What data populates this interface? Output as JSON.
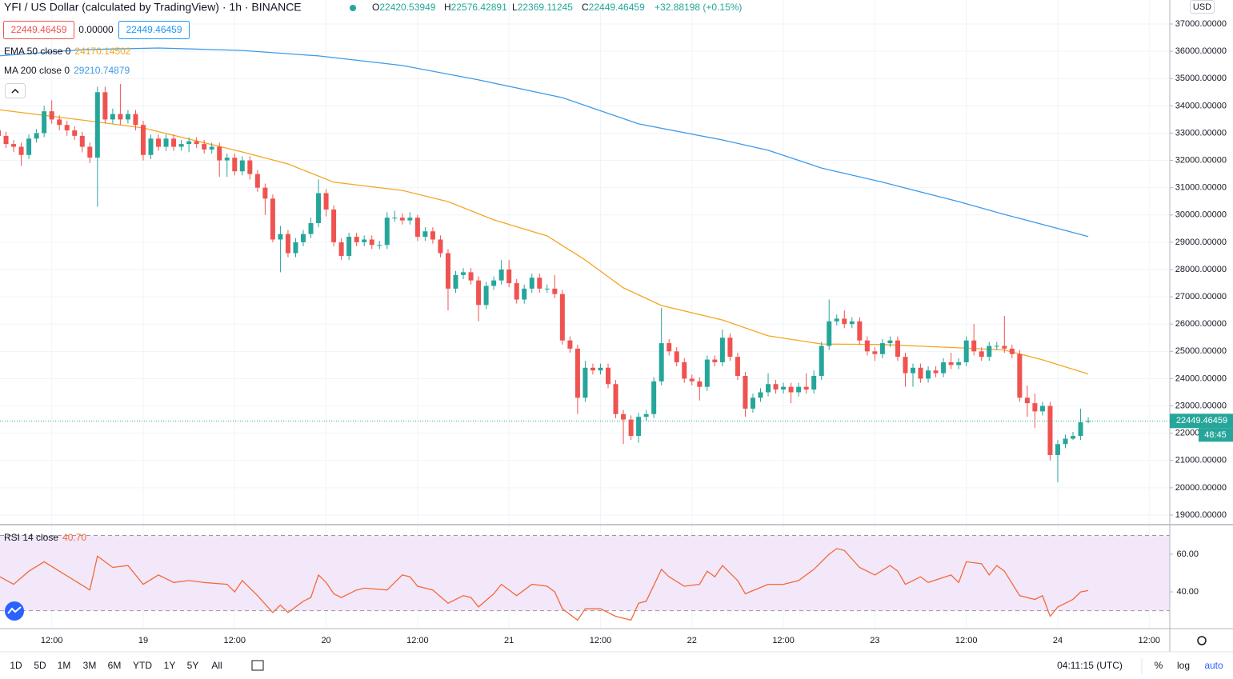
{
  "header": {
    "title": "YFI / US Dollar (calculated by TradingView) · 1h · BINANCE",
    "ohlc": [
      {
        "key": "O",
        "value": "22420.53949"
      },
      {
        "key": "H",
        "value": "22576.42891"
      },
      {
        "key": "L",
        "value": "22369.11245"
      },
      {
        "key": "C",
        "value": "22449.46459"
      }
    ],
    "change": "+32.88198 (+0.15%)",
    "boxes": [
      "22449.46459",
      "0.00000",
      "22449.46459"
    ],
    "currency": "USD"
  },
  "chart_data": [
    {
      "type": "candlestick",
      "up_color": "#26a69a",
      "down_color": "#ef5350",
      "grid": true,
      "xlim": [
        5.21,
        158.7
      ],
      "ylim": [
        18677,
        37880
      ],
      "yticks": [
        {
          "value": 37000,
          "label": "37000.00000"
        },
        {
          "value": 36000,
          "label": "36000.00000"
        },
        {
          "value": 35000,
          "label": "35000.00000"
        },
        {
          "value": 34000,
          "label": "34000.00000"
        },
        {
          "value": 33000,
          "label": "33000.00000"
        },
        {
          "value": 32000,
          "label": "32000.00000"
        },
        {
          "value": 31000,
          "label": "31000.00000"
        },
        {
          "value": 30000,
          "label": "30000.00000"
        },
        {
          "value": 29000,
          "label": "29000.00000"
        },
        {
          "value": 28000,
          "label": "28000.00000"
        },
        {
          "value": 27000,
          "label": "27000.00000"
        },
        {
          "value": 26000,
          "label": "26000.00000"
        },
        {
          "value": 25000,
          "label": "25000.00000"
        },
        {
          "value": 24000,
          "label": "24000.00000"
        },
        {
          "value": 23000,
          "label": "23000.00000"
        },
        {
          "value": 22000,
          "label": "22000.00000"
        },
        {
          "value": 21000,
          "label": "21000.00000"
        },
        {
          "value": 20000,
          "label": "20000.00000"
        },
        {
          "value": 19000,
          "label": "19000.00000"
        }
      ],
      "x": [
        5,
        6,
        7,
        8,
        9,
        10,
        11,
        12,
        13,
        14,
        15,
        16,
        17,
        18,
        19,
        20,
        21,
        22,
        23,
        24,
        25,
        26,
        27,
        28,
        29,
        30,
        31,
        32,
        33,
        34,
        35,
        36,
        37,
        38,
        39,
        40,
        41,
        42,
        43,
        44,
        45,
        46,
        47,
        48,
        49,
        50,
        51,
        52,
        53,
        54,
        55,
        56,
        57,
        58,
        59,
        60,
        61,
        62,
        63,
        64,
        65,
        66,
        67,
        68,
        69,
        70,
        71,
        72,
        73,
        74,
        75,
        76,
        77,
        78,
        79,
        80,
        81,
        82,
        83,
        84,
        85,
        86,
        87,
        88,
        89,
        90,
        91,
        92,
        93,
        94,
        95,
        96,
        97,
        98,
        99,
        100,
        101,
        102,
        103,
        104,
        105,
        106,
        107,
        108,
        109,
        110,
        111,
        112,
        113,
        114,
        115,
        116,
        117,
        118,
        119,
        120,
        121,
        122,
        123,
        124,
        125,
        126,
        127,
        128,
        129,
        130,
        131,
        132,
        133,
        134,
        135,
        136,
        137,
        138,
        139,
        140,
        141,
        142,
        143,
        144,
        145,
        146,
        147,
        148
      ],
      "open": [
        33100,
        32900,
        32600,
        32500,
        32200,
        32800,
        33000,
        33800,
        33500,
        33300,
        33100,
        32900,
        32500,
        32100,
        34500,
        33500,
        33700,
        33500,
        33700,
        33300,
        32200,
        32800,
        32500,
        32800,
        32500,
        32600,
        32700,
        32600,
        32400,
        32500,
        32000,
        32100,
        31600,
        32000,
        31500,
        31000,
        30600,
        29100,
        29300,
        28600,
        29000,
        29300,
        29700,
        30800,
        30200,
        29000,
        28500,
        29200,
        29000,
        29100,
        28900,
        28900,
        29900,
        29900,
        29800,
        29900,
        29200,
        29400,
        29100,
        28600,
        27300,
        27800,
        27900,
        27600,
        26700,
        27400,
        27600,
        28000,
        27500,
        26900,
        27300,
        27700,
        27300,
        27300,
        27100,
        25400,
        25100,
        23300,
        24400,
        24300,
        24400,
        23800,
        22700,
        22500,
        21900,
        22600,
        22700,
        23900,
        25300,
        25000,
        24600,
        24000,
        23900,
        23700,
        24700,
        24600,
        25500,
        24800,
        24100,
        22900,
        23300,
        23500,
        23800,
        23600,
        23700,
        23500,
        23700,
        23600,
        24100,
        25200,
        26100,
        26200,
        26000,
        26100,
        25400,
        25000,
        24900,
        25300,
        25400,
        24800,
        24200,
        24400,
        24000,
        24300,
        24200,
        24600,
        24500,
        24600,
        25400,
        25000,
        24800,
        25200,
        25200,
        25100,
        24900,
        23300,
        23100,
        22800,
        23000,
        21200,
        21600,
        21800,
        21900,
        22420.53949
      ],
      "high": [
        33250,
        33050,
        32750,
        32650,
        32950,
        33150,
        34000,
        34200,
        33650,
        33450,
        33250,
        33050,
        32650,
        34700,
        34700,
        33900,
        34800,
        33850,
        33850,
        33450,
        32950,
        32950,
        32950,
        32950,
        32750,
        32850,
        32850,
        32750,
        32650,
        32650,
        32250,
        32250,
        32150,
        32150,
        31650,
        31150,
        30750,
        29600,
        29450,
        29150,
        29450,
        29900,
        31300,
        30950,
        30350,
        29150,
        29350,
        29350,
        29250,
        29250,
        29050,
        30100,
        30150,
        30050,
        30100,
        30000,
        29550,
        29550,
        29250,
        28750,
        27950,
        28050,
        28050,
        27750,
        27550,
        27750,
        28350,
        28350,
        27650,
        27450,
        27850,
        27850,
        27450,
        27800,
        27250,
        25550,
        25250,
        24650,
        24550,
        24550,
        24550,
        23950,
        22850,
        22650,
        22750,
        22850,
        24050,
        26600,
        25450,
        25150,
        24750,
        24150,
        24050,
        24850,
        24850,
        25800,
        25650,
        24950,
        24250,
        23450,
        23650,
        24200,
        23950,
        23850,
        23850,
        23850,
        24200,
        24300,
        25350,
        26900,
        26350,
        26500,
        26250,
        26250,
        25550,
        25150,
        25450,
        25550,
        25550,
        24950,
        24550,
        24550,
        24450,
        24450,
        24750,
        24950,
        24750,
        25550,
        26000,
        25150,
        25350,
        25350,
        26300,
        25250,
        25050,
        23750,
        23450,
        23150,
        23150,
        21750,
        21950,
        22050,
        22900,
        22576.42891
      ],
      "low": [
        32750,
        32450,
        32300,
        31800,
        32050,
        32650,
        32850,
        33350,
        33100,
        32900,
        32750,
        32300,
        31900,
        30300,
        33350,
        33350,
        33300,
        33350,
        33100,
        32000,
        32050,
        32350,
        32350,
        32350,
        32350,
        32300,
        32450,
        32250,
        32250,
        31400,
        31400,
        31450,
        31450,
        31300,
        30850,
        30000,
        29000,
        27900,
        28450,
        28450,
        28850,
        29150,
        29550,
        29950,
        28850,
        28350,
        28350,
        28850,
        28850,
        28750,
        28750,
        28750,
        29750,
        29650,
        29650,
        29050,
        29050,
        28950,
        28450,
        26500,
        27150,
        27650,
        27450,
        26100,
        26550,
        27250,
        27450,
        27350,
        26750,
        26750,
        27150,
        27150,
        27150,
        26950,
        25250,
        24950,
        22700,
        23150,
        24150,
        24150,
        23650,
        22550,
        21600,
        21750,
        21650,
        22450,
        22550,
        23750,
        24850,
        24450,
        23850,
        23750,
        23200,
        23550,
        24450,
        24450,
        24650,
        23950,
        22600,
        22750,
        23150,
        23350,
        23450,
        23450,
        23100,
        23350,
        23450,
        23450,
        23950,
        25050,
        25950,
        25850,
        25850,
        25250,
        24850,
        24650,
        24750,
        25150,
        24650,
        23700,
        23700,
        23850,
        23850,
        24050,
        24050,
        24350,
        24350,
        24450,
        24850,
        24650,
        24650,
        25050,
        24950,
        24750,
        23150,
        22600,
        22200,
        22650,
        21000,
        20200,
        21450,
        21750,
        21750,
        22369.11245
      ],
      "close": [
        32900,
        32600,
        32500,
        32200,
        32800,
        33000,
        33800,
        33500,
        33300,
        33100,
        32900,
        32500,
        32100,
        34500,
        33500,
        33700,
        33500,
        33700,
        33300,
        32200,
        32800,
        32500,
        32800,
        32500,
        32600,
        32700,
        32600,
        32400,
        32500,
        32000,
        32100,
        31600,
        32000,
        31500,
        31000,
        30600,
        29100,
        29300,
        28600,
        29000,
        29300,
        29700,
        30800,
        30200,
        29000,
        28500,
        29200,
        29000,
        29100,
        28900,
        28900,
        29900,
        29900,
        29800,
        29900,
        29200,
        29400,
        29100,
        28600,
        27300,
        27800,
        27900,
        27600,
        26700,
        27400,
        27600,
        28000,
        27500,
        26900,
        27300,
        27700,
        27300,
        27300,
        27100,
        25400,
        25100,
        23300,
        24400,
        24300,
        24400,
        23800,
        22700,
        22500,
        21900,
        22600,
        22700,
        23900,
        25300,
        25000,
        24600,
        24000,
        23900,
        23700,
        24700,
        24600,
        25500,
        24800,
        24100,
        22900,
        23300,
        23500,
        23800,
        23600,
        23700,
        23500,
        23700,
        23600,
        24100,
        25200,
        26100,
        26200,
        26000,
        26100,
        25400,
        25000,
        24900,
        25300,
        25400,
        24800,
        24200,
        24400,
        24000,
        24300,
        24200,
        24600,
        24500,
        24600,
        25400,
        25000,
        24800,
        25200,
        25200,
        25100,
        24900,
        23300,
        23100,
        22800,
        23000,
        21200,
        21600,
        21800,
        21900,
        22400,
        22449.46459
      ],
      "last_price_label": "22449.46459",
      "countdown": "48:45",
      "series": [
        {
          "name": "EMA 50 close 0",
          "legend_value": "24170.14502",
          "color": "#f5a623",
          "x": [
            5,
            16,
            24,
            37,
            43,
            49,
            58,
            64,
            70,
            77,
            82,
            87,
            92,
            100,
            106,
            113,
            121,
            131,
            137,
            142,
            148
          ],
          "values": [
            33860,
            33480,
            33190,
            32310,
            31870,
            31200,
            30900,
            30490,
            29820,
            29230,
            28350,
            27330,
            26680,
            26150,
            25570,
            25270,
            25250,
            25130,
            25050,
            24690,
            24170.14502
          ]
        },
        {
          "name": "MA 200 close 0",
          "legend_value": "29210.74879",
          "color": "#3d9be9",
          "x": [
            5,
            16,
            26,
            37,
            47,
            58,
            68,
            79,
            89,
            100,
            106,
            113,
            121,
            131,
            137,
            148
          ],
          "values": [
            35830,
            36060,
            36120,
            36030,
            35830,
            35480,
            34950,
            34300,
            33340,
            32750,
            32370,
            31720,
            31200,
            30490,
            30020,
            29210.74879
          ]
        }
      ]
    },
    {
      "type": "line",
      "name": "RSI 14 close",
      "value_label": "40.70",
      "color": "#f26b38",
      "band_color": "#f3e7fa",
      "xlim": [
        5.21,
        158.7
      ],
      "ylim": [
        20.9,
        75.3
      ],
      "bands": [
        30,
        70
      ],
      "yticks": [
        {
          "value": 60,
          "label": "60.00"
        },
        {
          "value": 40,
          "label": "40.00"
        }
      ],
      "xticks": [
        {
          "value": 12,
          "label": "12:00"
        },
        {
          "value": 24,
          "label": "19"
        },
        {
          "value": 36,
          "label": "12:00"
        },
        {
          "value": 48,
          "label": "20"
        },
        {
          "value": 60,
          "label": "12:00"
        },
        {
          "value": 72,
          "label": "21"
        },
        {
          "value": 84,
          "label": "12:00"
        },
        {
          "value": 96,
          "label": "22"
        },
        {
          "value": 108,
          "label": "12:00"
        },
        {
          "value": 120,
          "label": "23"
        },
        {
          "value": 132,
          "label": "12:00"
        },
        {
          "value": 144,
          "label": "24"
        },
        {
          "value": 156,
          "label": "12:00"
        }
      ],
      "x": [
        5,
        7,
        9,
        11,
        13,
        15,
        17,
        18,
        20,
        22,
        24,
        26,
        28,
        30,
        32,
        35,
        36,
        37,
        39,
        41,
        42,
        43,
        45,
        46,
        47,
        48,
        49,
        50,
        52,
        53,
        56,
        58,
        59,
        60,
        62,
        64,
        66,
        67,
        68,
        70,
        71,
        73,
        75,
        77,
        78,
        79,
        81,
        82,
        84,
        86,
        88,
        89,
        90,
        92,
        93,
        95,
        97,
        98,
        99,
        100,
        102,
        103,
        106,
        108,
        110,
        112,
        114,
        115,
        116,
        118,
        120,
        122,
        123,
        124,
        126,
        127,
        130,
        131,
        132,
        134,
        135,
        136,
        137,
        139,
        141,
        142,
        143,
        144,
        146,
        147,
        148
      ],
      "values": [
        48.5,
        44,
        51,
        56,
        51,
        46,
        41,
        59,
        53,
        54,
        44,
        49,
        45,
        46,
        45,
        44,
        40,
        46,
        38,
        29,
        33,
        29,
        35,
        37,
        49,
        45,
        39,
        37,
        41,
        42,
        41,
        49,
        48,
        43,
        41,
        34,
        38,
        37,
        32,
        39,
        44,
        38,
        44,
        43,
        40,
        31,
        25,
        31,
        31,
        27,
        25,
        34,
        35,
        52,
        48,
        43,
        44,
        51,
        48,
        54,
        46,
        39,
        44,
        44,
        46,
        52,
        60,
        63,
        62,
        53,
        49,
        54,
        51,
        44,
        48,
        45,
        49,
        45,
        56,
        55,
        49,
        54,
        51,
        38,
        36,
        38,
        27,
        32,
        36,
        40,
        40.7
      ]
    }
  ],
  "toolbar": {
    "ranges": [
      "1D",
      "5D",
      "1M",
      "3M",
      "6M",
      "YTD",
      "1Y",
      "5Y",
      "All"
    ],
    "time": "04:11:15 (UTC)",
    "options": [
      "%",
      "log",
      "auto"
    ]
  }
}
